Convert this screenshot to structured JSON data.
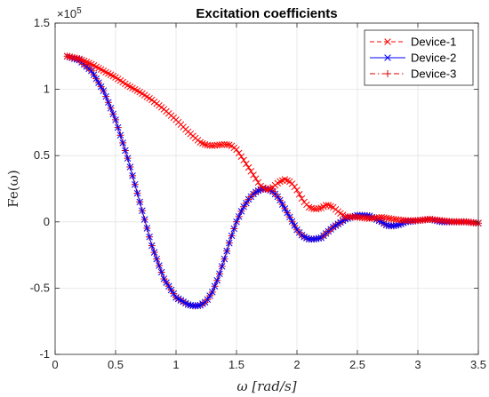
{
  "chart_data": {
    "type": "line",
    "title": "Excitation coefficients",
    "xlabel": "ω [rad/s]",
    "ylabel": "Fe(ω)",
    "xlim": [
      0,
      3.5
    ],
    "ylim": [
      -1,
      1.5
    ],
    "y_exponent_label": "×10",
    "y_exponent_power": "5",
    "grid": true,
    "legend_position": "top-right",
    "x_ticks": [
      "0",
      "0.5",
      "1",
      "1.5",
      "2",
      "2.5",
      "3",
      "3.5"
    ],
    "y_ticks": [
      "-1",
      "-0.5",
      "0",
      "0.5",
      "1",
      "1.5"
    ],
    "x_tick_values": [
      0,
      0.5,
      1,
      1.5,
      2,
      2.5,
      3,
      3.5
    ],
    "y_tick_values": [
      -1,
      -0.5,
      0,
      0.5,
      1,
      1.5
    ],
    "series": [
      {
        "name": "Device-1",
        "color": "#ff0000",
        "line_style": "dashed",
        "marker": "x",
        "x": [
          0.1,
          0.2,
          0.3,
          0.4,
          0.5,
          0.6,
          0.7,
          0.8,
          0.9,
          1.0,
          1.1,
          1.2,
          1.25,
          1.3,
          1.35,
          1.4,
          1.45,
          1.5,
          1.55,
          1.6,
          1.65,
          1.7,
          1.75,
          1.8,
          1.85,
          1.9,
          1.95,
          2.0,
          2.05,
          2.1,
          2.15,
          2.2,
          2.25,
          2.3,
          2.35,
          2.4,
          2.5,
          2.6,
          2.7,
          2.8,
          2.9,
          3.0,
          3.1,
          3.2,
          3.3,
          3.4,
          3.5
        ],
        "y": [
          1.25,
          1.23,
          1.19,
          1.14,
          1.09,
          1.03,
          0.98,
          0.92,
          0.85,
          0.77,
          0.68,
          0.6,
          0.58,
          0.575,
          0.58,
          0.585,
          0.58,
          0.545,
          0.48,
          0.41,
          0.34,
          0.27,
          0.24,
          0.26,
          0.3,
          0.32,
          0.3,
          0.24,
          0.16,
          0.11,
          0.095,
          0.105,
          0.13,
          0.11,
          0.07,
          0.04,
          0.035,
          0.025,
          0.035,
          0.02,
          0.01,
          0.01,
          0.02,
          0.01,
          0.0,
          0.0,
          -0.01
        ]
      },
      {
        "name": "Device-2",
        "color": "#0000ff",
        "line_style": "solid",
        "marker": "x",
        "x": [
          0.1,
          0.2,
          0.3,
          0.4,
          0.5,
          0.6,
          0.7,
          0.8,
          0.9,
          1.0,
          1.1,
          1.15,
          1.2,
          1.25,
          1.3,
          1.35,
          1.4,
          1.45,
          1.5,
          1.55,
          1.6,
          1.65,
          1.7,
          1.75,
          1.8,
          1.85,
          1.9,
          1.95,
          2.0,
          2.05,
          2.1,
          2.15,
          2.2,
          2.25,
          2.3,
          2.4,
          2.5,
          2.6,
          2.7,
          2.75,
          2.8,
          2.85,
          2.9,
          3.0,
          3.1,
          3.2,
          3.3,
          3.4,
          3.5
        ],
        "y": [
          1.25,
          1.22,
          1.14,
          0.99,
          0.77,
          0.48,
          0.15,
          -0.18,
          -0.43,
          -0.57,
          -0.625,
          -0.635,
          -0.63,
          -0.6,
          -0.53,
          -0.42,
          -0.28,
          -0.13,
          0.0,
          0.1,
          0.17,
          0.22,
          0.245,
          0.25,
          0.23,
          0.18,
          0.1,
          0.02,
          -0.06,
          -0.11,
          -0.13,
          -0.13,
          -0.12,
          -0.08,
          -0.04,
          0.02,
          0.05,
          0.045,
          0.0,
          -0.03,
          -0.03,
          -0.02,
          0.0,
          0.01,
          0.02,
          0.0,
          0.0,
          0.0,
          -0.01
        ]
      },
      {
        "name": "Device-3",
        "color": "#dd0000",
        "line_style": "dashdot",
        "marker": "+",
        "x": [
          0.1,
          0.2,
          0.3,
          0.4,
          0.5,
          0.6,
          0.7,
          0.8,
          0.9,
          1.0,
          1.1,
          1.15,
          1.2,
          1.25,
          1.3,
          1.35,
          1.4,
          1.45,
          1.5,
          1.55,
          1.6,
          1.65,
          1.7,
          1.75,
          1.8,
          1.85,
          1.9,
          1.95,
          2.0,
          2.05,
          2.1,
          2.15,
          2.2,
          2.25,
          2.3,
          2.4,
          2.5,
          2.6,
          2.7,
          2.75,
          2.8,
          2.85,
          2.9,
          3.0,
          3.1,
          3.2,
          3.3,
          3.4,
          3.5
        ],
        "y": [
          1.25,
          1.22,
          1.14,
          0.99,
          0.77,
          0.48,
          0.15,
          -0.18,
          -0.43,
          -0.57,
          -0.625,
          -0.635,
          -0.63,
          -0.6,
          -0.53,
          -0.42,
          -0.28,
          -0.13,
          0.0,
          0.1,
          0.17,
          0.22,
          0.245,
          0.25,
          0.23,
          0.18,
          0.1,
          0.02,
          -0.06,
          -0.11,
          -0.13,
          -0.13,
          -0.12,
          -0.08,
          -0.04,
          0.02,
          0.05,
          0.045,
          0.0,
          -0.03,
          -0.03,
          -0.02,
          0.0,
          0.01,
          0.02,
          0.0,
          0.0,
          0.0,
          -0.01
        ]
      }
    ]
  }
}
